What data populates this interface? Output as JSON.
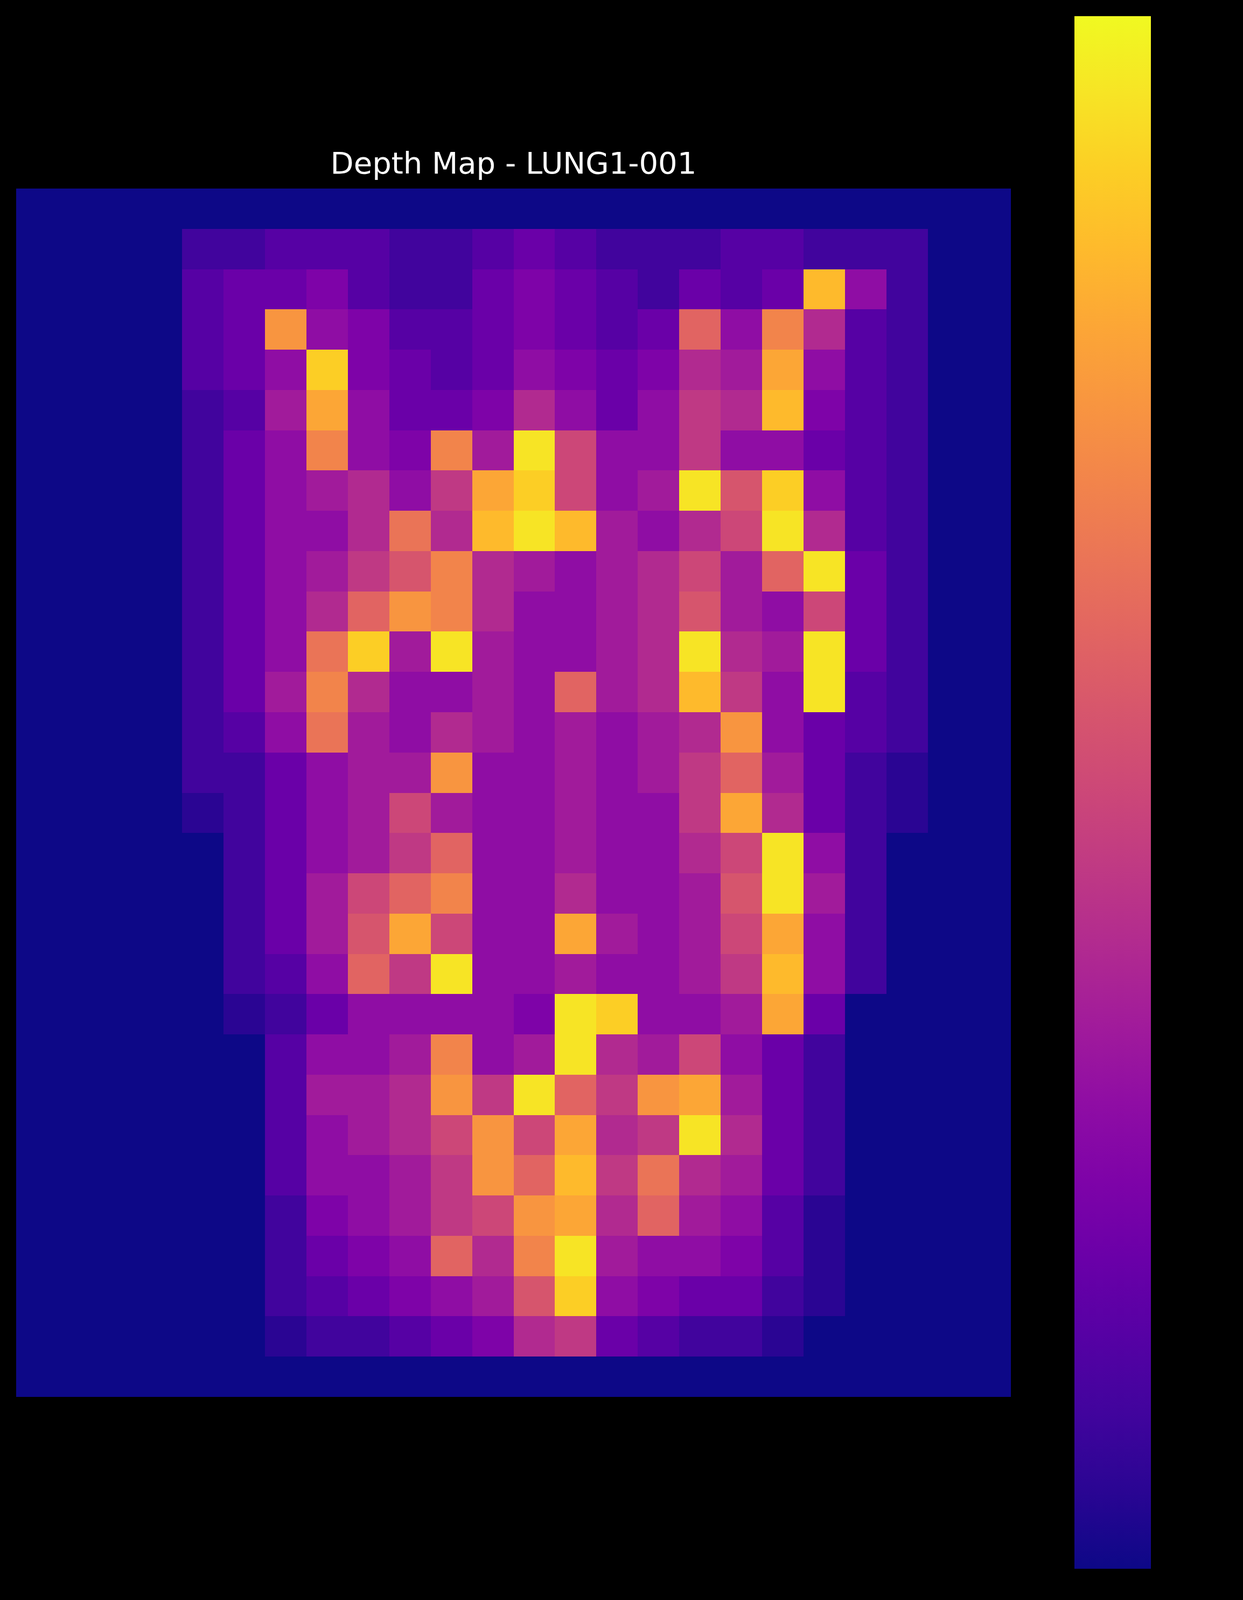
{
  "chart_data": {
    "type": "heatmap",
    "title": "Depth Map - LUNG1-001",
    "color": "plasma",
    "tick_labels": false,
    "zlim": [
      0,
      1
    ],
    "z": [
      [
        0,
        0,
        0,
        0,
        0,
        0,
        0,
        0,
        0,
        0,
        0,
        0,
        0,
        0,
        0,
        0,
        0,
        0,
        0,
        0,
        0,
        0,
        0,
        0
      ],
      [
        0,
        0,
        0,
        0,
        0.1,
        0.1,
        0.15,
        0.15,
        0.15,
        0.1,
        0.1,
        0.15,
        0.2,
        0.15,
        0.1,
        0.1,
        0.1,
        0.15,
        0.15,
        0.1,
        0.1,
        0.1,
        0,
        0
      ],
      [
        0,
        0,
        0,
        0,
        0.15,
        0.2,
        0.2,
        0.25,
        0.15,
        0.1,
        0.1,
        0.2,
        0.25,
        0.2,
        0.15,
        0.1,
        0.2,
        0.15,
        0.2,
        0.85,
        0.3,
        0.1,
        0,
        0
      ],
      [
        0,
        0,
        0,
        0,
        0.15,
        0.2,
        0.75,
        0.3,
        0.25,
        0.15,
        0.15,
        0.2,
        0.25,
        0.2,
        0.15,
        0.2,
        0.6,
        0.3,
        0.7,
        0.4,
        0.15,
        0.1,
        0,
        0
      ],
      [
        0,
        0,
        0,
        0,
        0.15,
        0.2,
        0.3,
        0.9,
        0.25,
        0.2,
        0.15,
        0.2,
        0.3,
        0.25,
        0.2,
        0.25,
        0.4,
        0.35,
        0.8,
        0.3,
        0.15,
        0.1,
        0,
        0
      ],
      [
        0,
        0,
        0,
        0,
        0.1,
        0.15,
        0.35,
        0.8,
        0.3,
        0.2,
        0.2,
        0.25,
        0.4,
        0.3,
        0.2,
        0.3,
        0.45,
        0.4,
        0.85,
        0.25,
        0.15,
        0.1,
        0,
        0
      ],
      [
        0,
        0,
        0,
        0,
        0.1,
        0.2,
        0.3,
        0.7,
        0.3,
        0.25,
        0.7,
        0.35,
        0.95,
        0.5,
        0.3,
        0.3,
        0.45,
        0.3,
        0.3,
        0.2,
        0.15,
        0.1,
        0,
        0
      ],
      [
        0,
        0,
        0,
        0,
        0.1,
        0.2,
        0.3,
        0.35,
        0.4,
        0.3,
        0.45,
        0.8,
        0.9,
        0.5,
        0.3,
        0.35,
        0.95,
        0.55,
        0.9,
        0.3,
        0.15,
        0.1,
        0,
        0
      ],
      [
        0,
        0,
        0,
        0,
        0.1,
        0.2,
        0.3,
        0.3,
        0.4,
        0.65,
        0.4,
        0.85,
        0.95,
        0.85,
        0.35,
        0.3,
        0.4,
        0.5,
        0.95,
        0.4,
        0.15,
        0.1,
        0,
        0
      ],
      [
        0,
        0,
        0,
        0,
        0.1,
        0.2,
        0.3,
        0.35,
        0.45,
        0.55,
        0.7,
        0.4,
        0.35,
        0.3,
        0.35,
        0.4,
        0.5,
        0.35,
        0.6,
        0.95,
        0.2,
        0.1,
        0,
        0
      ],
      [
        0,
        0,
        0,
        0,
        0.1,
        0.2,
        0.3,
        0.4,
        0.6,
        0.75,
        0.7,
        0.4,
        0.3,
        0.3,
        0.35,
        0.4,
        0.55,
        0.35,
        0.3,
        0.5,
        0.2,
        0.1,
        0,
        0
      ],
      [
        0,
        0,
        0,
        0,
        0.1,
        0.2,
        0.3,
        0.65,
        0.9,
        0.35,
        0.95,
        0.35,
        0.3,
        0.3,
        0.35,
        0.4,
        0.95,
        0.4,
        0.35,
        0.95,
        0.2,
        0.1,
        0,
        0
      ],
      [
        0,
        0,
        0,
        0,
        0.1,
        0.2,
        0.35,
        0.7,
        0.4,
        0.3,
        0.3,
        0.35,
        0.3,
        0.6,
        0.35,
        0.4,
        0.85,
        0.45,
        0.3,
        0.95,
        0.15,
        0.1,
        0,
        0
      ],
      [
        0,
        0,
        0,
        0,
        0.1,
        0.15,
        0.3,
        0.65,
        0.35,
        0.3,
        0.4,
        0.35,
        0.3,
        0.35,
        0.3,
        0.35,
        0.4,
        0.75,
        0.3,
        0.2,
        0.15,
        0.1,
        0,
        0
      ],
      [
        0,
        0,
        0,
        0,
        0.1,
        0.1,
        0.2,
        0.3,
        0.35,
        0.35,
        0.75,
        0.3,
        0.3,
        0.35,
        0.3,
        0.35,
        0.45,
        0.6,
        0.35,
        0.2,
        0.1,
        0.05,
        0,
        0
      ],
      [
        0,
        0,
        0,
        0,
        0.05,
        0.1,
        0.2,
        0.3,
        0.35,
        0.5,
        0.35,
        0.3,
        0.3,
        0.35,
        0.3,
        0.3,
        0.45,
        0.8,
        0.4,
        0.2,
        0.1,
        0.05,
        0,
        0
      ],
      [
        0,
        0,
        0,
        0,
        0,
        0.1,
        0.2,
        0.3,
        0.35,
        0.45,
        0.6,
        0.3,
        0.3,
        0.35,
        0.3,
        0.3,
        0.4,
        0.5,
        0.95,
        0.3,
        0.1,
        0,
        0,
        0
      ],
      [
        0,
        0,
        0,
        0,
        0,
        0.1,
        0.2,
        0.35,
        0.5,
        0.6,
        0.7,
        0.3,
        0.3,
        0.4,
        0.3,
        0.3,
        0.35,
        0.55,
        0.95,
        0.35,
        0.1,
        0,
        0,
        0
      ],
      [
        0,
        0,
        0,
        0,
        0,
        0.1,
        0.2,
        0.35,
        0.55,
        0.8,
        0.5,
        0.3,
        0.3,
        0.8,
        0.35,
        0.3,
        0.35,
        0.5,
        0.8,
        0.3,
        0.1,
        0,
        0,
        0
      ],
      [
        0,
        0,
        0,
        0,
        0,
        0.1,
        0.15,
        0.3,
        0.6,
        0.45,
        0.95,
        0.3,
        0.3,
        0.35,
        0.3,
        0.3,
        0.35,
        0.45,
        0.85,
        0.3,
        0.1,
        0,
        0,
        0
      ],
      [
        0,
        0,
        0,
        0,
        0,
        0.05,
        0.1,
        0.2,
        0.3,
        0.3,
        0.3,
        0.3,
        0.25,
        0.95,
        0.9,
        0.3,
        0.3,
        0.35,
        0.8,
        0.2,
        0,
        0,
        0,
        0
      ],
      [
        0,
        0,
        0,
        0,
        0,
        0,
        0.15,
        0.3,
        0.3,
        0.35,
        0.7,
        0.3,
        0.35,
        0.95,
        0.4,
        0.35,
        0.5,
        0.3,
        0.2,
        0.1,
        0,
        0,
        0,
        0
      ],
      [
        0,
        0,
        0,
        0,
        0,
        0,
        0.15,
        0.35,
        0.35,
        0.4,
        0.75,
        0.45,
        0.95,
        0.6,
        0.45,
        0.75,
        0.8,
        0.35,
        0.2,
        0.1,
        0,
        0,
        0,
        0
      ],
      [
        0,
        0,
        0,
        0,
        0,
        0,
        0.15,
        0.3,
        0.35,
        0.4,
        0.5,
        0.75,
        0.5,
        0.8,
        0.4,
        0.45,
        0.95,
        0.4,
        0.2,
        0.1,
        0,
        0,
        0,
        0
      ],
      [
        0,
        0,
        0,
        0,
        0,
        0,
        0.15,
        0.3,
        0.3,
        0.35,
        0.45,
        0.75,
        0.6,
        0.85,
        0.45,
        0.65,
        0.4,
        0.35,
        0.2,
        0.1,
        0,
        0,
        0,
        0
      ],
      [
        0,
        0,
        0,
        0,
        0,
        0,
        0.1,
        0.25,
        0.3,
        0.35,
        0.45,
        0.5,
        0.75,
        0.8,
        0.4,
        0.6,
        0.35,
        0.3,
        0.15,
        0.05,
        0,
        0,
        0,
        0
      ],
      [
        0,
        0,
        0,
        0,
        0,
        0,
        0.1,
        0.2,
        0.25,
        0.3,
        0.6,
        0.4,
        0.7,
        0.95,
        0.35,
        0.3,
        0.3,
        0.25,
        0.15,
        0.05,
        0,
        0,
        0,
        0
      ],
      [
        0,
        0,
        0,
        0,
        0,
        0,
        0.1,
        0.15,
        0.2,
        0.25,
        0.3,
        0.35,
        0.55,
        0.9,
        0.3,
        0.25,
        0.2,
        0.2,
        0.1,
        0.05,
        0,
        0,
        0,
        0
      ],
      [
        0,
        0,
        0,
        0,
        0,
        0,
        0.05,
        0.1,
        0.1,
        0.15,
        0.2,
        0.25,
        0.4,
        0.45,
        0.2,
        0.15,
        0.1,
        0.1,
        0.05,
        0,
        0,
        0,
        0,
        0
      ],
      [
        0,
        0,
        0,
        0,
        0,
        0,
        0,
        0,
        0,
        0,
        0,
        0,
        0,
        0,
        0,
        0,
        0,
        0,
        0,
        0,
        0,
        0,
        0,
        0
      ]
    ]
  }
}
